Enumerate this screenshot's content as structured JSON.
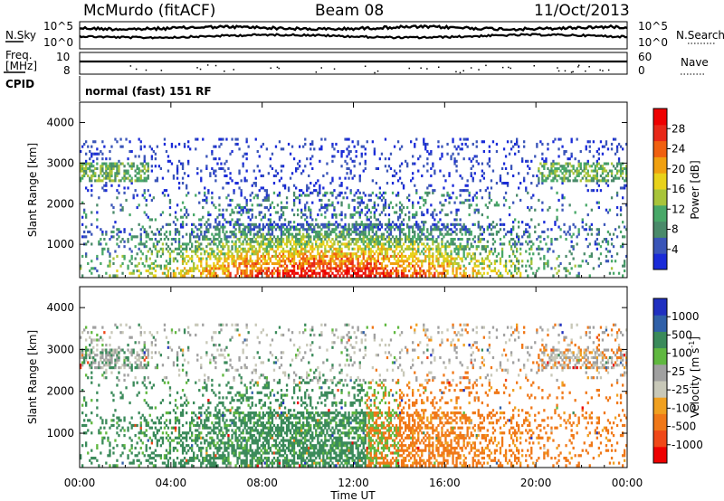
{
  "header": {
    "station": "McMurdo (fitACF)",
    "beam": "Beam 08",
    "date": "11/Oct/2013"
  },
  "top_panels": {
    "nsky_label": "N.Sky",
    "nsearch_label": "N.Search",
    "nsky_ticks": [
      "10^5",
      "10^0"
    ],
    "freq_label_1": "Freq.",
    "freq_label_2": "[MHz]",
    "freq_ticks": [
      "10",
      "8"
    ],
    "nave_label": "Nave",
    "nave_ticks": [
      "60",
      "0"
    ],
    "cpid_label": "CPID",
    "cpid_value": "normal (fast) 151 RF"
  },
  "colors": {
    "power_scale": [
      "#1a2bd8",
      "#3a55b8",
      "#4a8a6a",
      "#48a868",
      "#a8c43a",
      "#e8d21a",
      "#f0a010",
      "#f06010",
      "#e82818",
      "#ee0000"
    ],
    "velocity_scale": [
      "#ee0000",
      "#f04818",
      "#f07818",
      "#f0a020",
      "#c8c8b8",
      "#a0a0a0",
      "#60b840",
      "#3a8a5a",
      "#3060a8",
      "#2030c0"
    ],
    "power_main": "#f06010",
    "velocity_green": "#3a8a5a",
    "velocity_orange": "#f07818"
  },
  "chart_data": [
    {
      "type": "heatmap",
      "panel": "power",
      "xlabel": "Time UT",
      "ylabel": "Slant Range [km]",
      "x_ticks": [
        "00:00",
        "04:00",
        "08:00",
        "12:00",
        "16:00",
        "20:00",
        "00:00"
      ],
      "xlim_hours": [
        0,
        24
      ],
      "y_ticks": [
        "4000",
        "3000",
        "2000",
        "1000"
      ],
      "ylim_km": [
        180,
        4500
      ],
      "colorbar_label": "Power [dB]",
      "colorbar_ticks": [
        "28",
        "24",
        "20",
        "16",
        "12",
        "8",
        "4"
      ],
      "colorbar_range": [
        0,
        30
      ]
    },
    {
      "type": "heatmap",
      "panel": "velocity",
      "xlabel": "Time UT",
      "ylabel": "Slant Range [km]",
      "x_ticks": [
        "00:00",
        "04:00",
        "08:00",
        "12:00",
        "16:00",
        "20:00",
        "00:00"
      ],
      "xlim_hours": [
        0,
        24
      ],
      "y_ticks": [
        "4000",
        "3000",
        "2000",
        "1000"
      ],
      "ylim_km": [
        180,
        4500
      ],
      "colorbar_label": "Velocity [m s",
      "colorbar_label_sup": "-1",
      "colorbar_label_end": "]",
      "colorbar_ticks": [
        "1000",
        "500",
        "100",
        "25",
        "-25",
        "-100",
        "-500",
        "-1000"
      ]
    }
  ],
  "xaxis": {
    "label": "Time UT",
    "ticks": [
      "00:00",
      "04:00",
      "08:00",
      "12:00",
      "16:00",
      "20:00",
      "00:00"
    ]
  }
}
